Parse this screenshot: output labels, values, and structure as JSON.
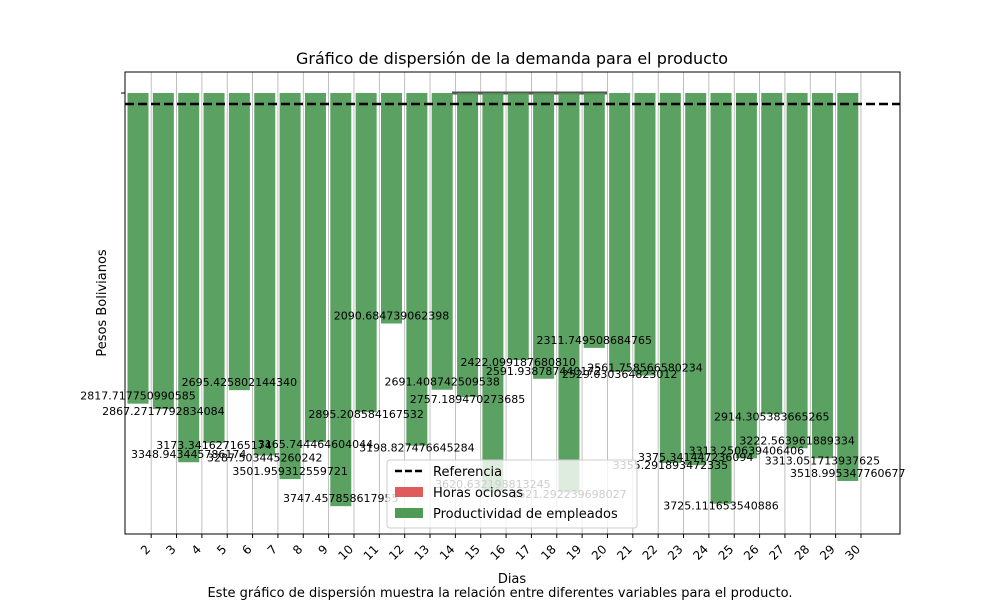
{
  "chart_data": {
    "type": "bar",
    "title": "Gráfico de dispersión de la demanda para el producto",
    "xlabel": "Dias",
    "ylabel": "Pesos Bolivianos",
    "caption": "Este gráfico de dispersión muestra la relación entre diferentes variables para el producto.",
    "x_ticks": [
      "2",
      "3",
      "4",
      "5",
      "6",
      "7",
      "8",
      "9",
      "10",
      "11",
      "12",
      "13",
      "14",
      "15",
      "16",
      "17",
      "18",
      "19",
      "20",
      "21",
      "22",
      "23",
      "24",
      "25",
      "26",
      "27",
      "28",
      "29",
      "30"
    ],
    "y_tick_label": "",
    "ylim": [
      0,
      4000
    ],
    "y_axis_inverted": true,
    "grid": "x",
    "legend_position": "lower center",
    "reference_value": 100,
    "series": [
      {
        "name": "Productividad de empleados",
        "color": "#4f9a55",
        "values": [
          2817.717750990585,
          2867.2717792834083,
          3348.943445786174,
          3173.341627165174,
          2695.42580214434,
          3287.503445260242,
          3501.959312559721,
          3165.744464604044,
          3747.457858617955,
          2895.208584167532,
          2090.684739062398,
          3198.827476645284,
          2691.408742509538,
          2757.189470273685,
          3620.632198813245,
          2422.09918768081,
          2591.938787440172,
          3621.292239698027,
          2311.749508684765,
          2529.030364823012,
          2561.758566580234,
          3355.291893472335,
          3375.341447236094,
          3725.111653540886,
          3313.250639406406,
          2914.305383665265,
          3222.563961889334,
          3313.051713937625,
          3518.995347760677
        ]
      },
      {
        "name": "Horas ociosas",
        "color": "#e05c5c",
        "values": []
      }
    ],
    "reference_series": {
      "name": "Referencia",
      "color": "#000000"
    },
    "bar_labels": [
      "2817.717750990585",
      "2867.2717792834084",
      "3348.943445786174",
      "3173.341627165174",
      "2695.425802144340",
      "3287.503445260242",
      "3501.959312559721",
      "3165.744464604044",
      "3747.457858617955",
      "2895.208584167532",
      "2090.684739062398",
      "3198.827476645284",
      "2691.408742509538",
      "2757.189470273685",
      "3620.632198813245",
      "2422.099187680810",
      "2591.938787440172",
      "3621.292239698027",
      "2311.749508684765",
      "2529.030364823012",
      "2561.758566580234",
      "3355.291893472335",
      "3375.341447236094",
      "3725.111653540886",
      "3313.250639406406",
      "2914.305383665265",
      "3222.563961889334",
      "3313.051713937625",
      "3518.995347760677"
    ]
  }
}
